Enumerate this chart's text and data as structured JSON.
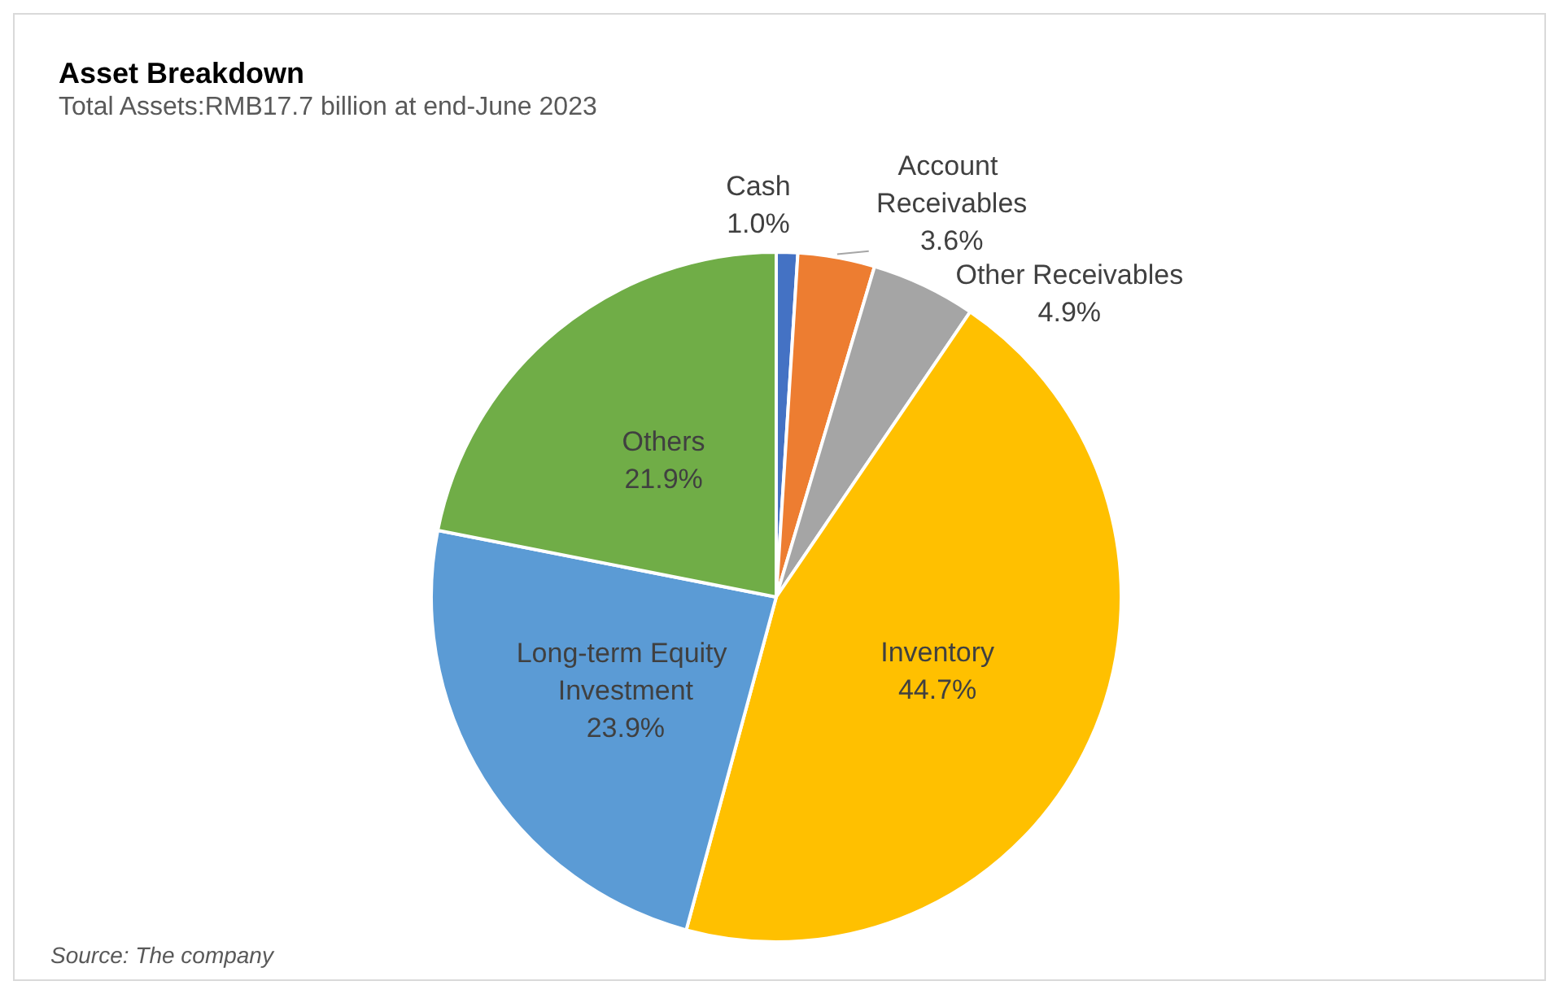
{
  "chart_data": {
    "type": "pie",
    "title": "Asset Breakdown",
    "subtitle": "Total Assets:RMB17.7 billion at end-June 2023",
    "categories": [
      "Cash",
      "Account Receivables",
      "Other Receivables",
      "Inventory",
      "Long-term Equity Investment",
      "Others"
    ],
    "values": [
      1.0,
      3.6,
      4.9,
      44.7,
      23.9,
      21.9
    ],
    "colors": [
      "#4472c4",
      "#ed7d31",
      "#a5a5a5",
      "#ffc000",
      "#5b9bd5",
      "#70ad47"
    ],
    "value_labels": [
      "1.0%",
      "3.6%",
      "4.9%",
      "44.7%",
      "23.9%",
      "21.9%"
    ],
    "annotations": [
      "Source: The company"
    ],
    "legend": false
  }
}
